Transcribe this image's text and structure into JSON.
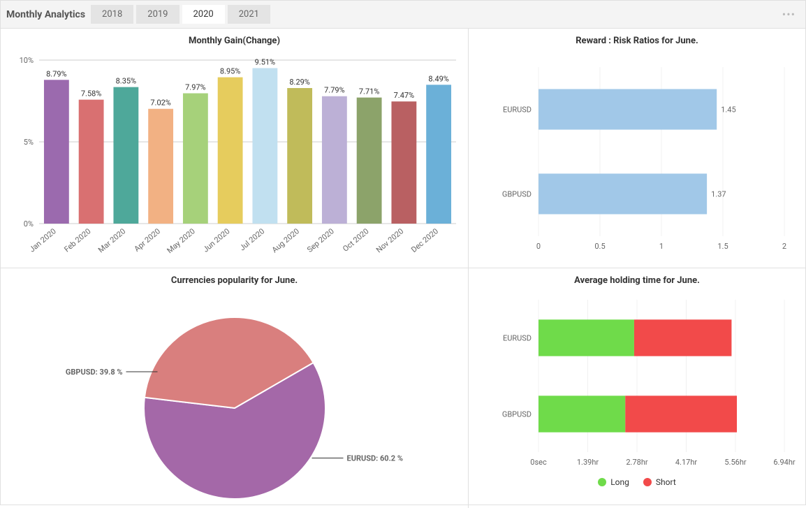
{
  "header": {
    "title": "Monthly Analytics",
    "tabs": [
      "2018",
      "2019",
      "2020",
      "2021"
    ],
    "active_tab_index": 2
  },
  "monthly_gain": {
    "title": "Monthly Gain(Change)",
    "type": "bar",
    "categories": [
      "Jan 2020",
      "Feb 2020",
      "Mar 2020",
      "Apr 2020",
      "May 2020",
      "Jun 2020",
      "Jul 2020",
      "Aug 2020",
      "Sep 2020",
      "Oct 2020",
      "Nov 2020",
      "Dec 2020"
    ],
    "values": [
      8.79,
      7.58,
      8.35,
      7.02,
      7.97,
      8.95,
      9.51,
      8.29,
      7.79,
      7.71,
      7.47,
      8.49
    ],
    "value_labels": [
      "8.79%",
      "7.58%",
      "8.35%",
      "7.02%",
      "7.97%",
      "8.95%",
      "9.51%",
      "8.29%",
      "7.79%",
      "7.71%",
      "7.47%",
      "8.49%"
    ],
    "bar_colors": [
      "#9b6aae",
      "#d97071",
      "#4ea89a",
      "#f2b183",
      "#a6d17a",
      "#e6cc5d",
      "#c1e0f0",
      "#c0bb5a",
      "#bcb0d6",
      "#8ca36a",
      "#b96062",
      "#6bb0d8"
    ],
    "ylim": [
      0,
      10
    ],
    "yticks": [
      0,
      5,
      10
    ],
    "ytick_labels": [
      "0%",
      "5%",
      "10%"
    ],
    "axis_color": "#cccccc",
    "grid_color": "#e8e8e8",
    "label_fontsize": 11,
    "title_fontsize": 13
  },
  "reward_risk": {
    "title": "Reward : Risk Ratios for June.",
    "type": "hbar",
    "categories": [
      "EURUSD",
      "GBPUSD"
    ],
    "values": [
      1.45,
      1.37
    ],
    "value_labels": [
      "1.45",
      "1.37"
    ],
    "bar_color": "#a1c8e8",
    "xlim": [
      0,
      2
    ],
    "xticks": [
      0,
      0.5,
      1,
      1.5,
      2
    ],
    "xtick_labels": [
      "0",
      "0.5",
      "1",
      "1.5",
      "2"
    ],
    "grid_color": "#f0f0f0",
    "label_fontsize": 11,
    "title_fontsize": 13
  },
  "currency_pop": {
    "title": "Currencies popularity for June.",
    "type": "pie",
    "slices": [
      {
        "label": "EURUSD",
        "value": 60.2,
        "color": "#a468a8",
        "label_text": "EURUSD: 60.2 %"
      },
      {
        "label": "GBPUSD",
        "value": 39.8,
        "color": "#d97f7e",
        "label_text": "GBPUSD: 39.8 %"
      }
    ],
    "label_fontsize": 12,
    "title_fontsize": 13
  },
  "holding_time": {
    "title": "Average holding time for June.",
    "type": "stacked_hbar",
    "categories": [
      "EURUSD",
      "GBPUSD"
    ],
    "series": [
      {
        "name": "Long",
        "color": "#6fdb4a",
        "values": [
          2.7,
          2.45
        ]
      },
      {
        "name": "Short",
        "color": "#f24a4a",
        "values": [
          2.75,
          3.15
        ]
      }
    ],
    "xlim": [
      0,
      6.94
    ],
    "xticks": [
      0,
      1.39,
      2.78,
      4.17,
      5.56,
      6.94
    ],
    "xtick_labels": [
      "0sec",
      "1.39hr",
      "2.78hr",
      "4.17hr",
      "5.56hr",
      "6.94hr"
    ],
    "grid_color": "#f0f0f0",
    "label_fontsize": 11,
    "title_fontsize": 13,
    "legend": [
      {
        "label": "Long",
        "color": "#6fdb4a"
      },
      {
        "label": "Short",
        "color": "#f24a4a"
      }
    ]
  }
}
